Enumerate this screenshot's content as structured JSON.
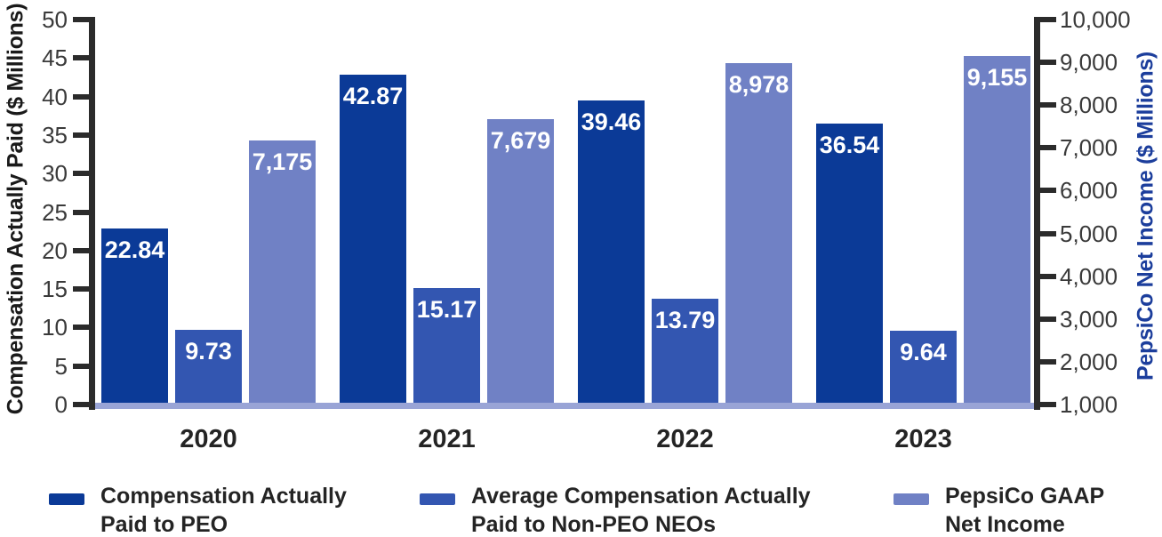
{
  "chart_data": {
    "type": "bar",
    "title": "",
    "categories": [
      "2020",
      "2021",
      "2022",
      "2023"
    ],
    "series": [
      {
        "name": "Compensation Actually Paid to PEO",
        "axis": "left",
        "color": "#0b3a97",
        "values": [
          22.84,
          42.87,
          39.46,
          36.54
        ],
        "labels": [
          "22.84",
          "42.87",
          "39.46",
          "36.54"
        ]
      },
      {
        "name": "Average Compensation Actually Paid to Non-PEO NEOs",
        "axis": "left",
        "color": "#3356b1",
        "values": [
          9.73,
          15.17,
          13.79,
          9.64
        ],
        "labels": [
          "9.73",
          "15.17",
          "13.79",
          "9.64"
        ]
      },
      {
        "name": "PepsiCo GAAP Net Income",
        "axis": "right",
        "color": "#7081c5",
        "values": [
          7175,
          7679,
          8978,
          9155
        ],
        "labels": [
          "7,175",
          "7,679",
          "8,978",
          "9,155"
        ]
      }
    ],
    "left_axis": {
      "label": "Compensation Actually Paid ($ Millions)",
      "min": 0,
      "max": 50,
      "tick_labels": [
        "50",
        "45",
        "40",
        "35",
        "30",
        "25",
        "20",
        "15",
        "10",
        "5",
        "0"
      ]
    },
    "right_axis": {
      "label": "PepsiCo Net Income ($ Millions)",
      "label_color": "#1c3e9c",
      "min": 1000,
      "max": 10000,
      "tick_labels": [
        "10,000",
        "9,000",
        "8,000",
        "7,000",
        "6,000",
        "5,000",
        "4,000",
        "3,000",
        "2,000",
        "1,000"
      ]
    },
    "legend": [
      {
        "color": "#0b3a97",
        "lines": [
          "Compensation Actually",
          "Paid to PEO"
        ]
      },
      {
        "color": "#3356b1",
        "lines": [
          "Average Compensation Actually",
          "Paid to Non-PEO NEOs"
        ]
      },
      {
        "color": "#7081c5",
        "lines": [
          "PepsiCo GAAP",
          "Net Income"
        ]
      }
    ],
    "layout_hints": {
      "grid": false,
      "legend_position": "bottom",
      "value_labels": "inside-top, white bold",
      "baseline_strip_color": "#99a4d6"
    }
  }
}
